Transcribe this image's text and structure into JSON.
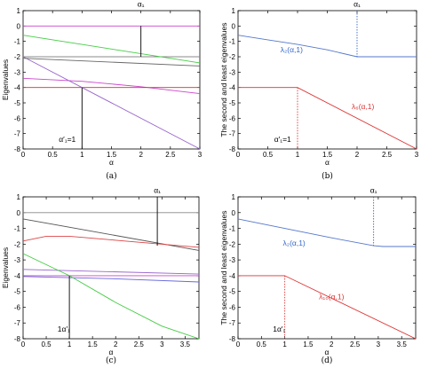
{
  "chart_data": [
    {
      "id": "a",
      "type": "line",
      "caption": "(a)",
      "xlabel": "α",
      "ylabel": "Eigenvalues",
      "xlim": [
        0,
        3
      ],
      "ylim": [
        -8,
        1
      ],
      "xticks": [
        "0",
        "0.5",
        "1",
        "1.5",
        "2",
        "2.5",
        "3"
      ],
      "yticks": [
        "1",
        "0",
        "-1",
        "-2",
        "-3",
        "-4",
        "-5",
        "-6",
        "-7",
        "-8"
      ],
      "series": [
        {
          "color": "#cc44cc",
          "x": [
            0,
            3
          ],
          "y": [
            0,
            0
          ]
        },
        {
          "color": "#888888",
          "x": [
            0,
            3
          ],
          "y": [
            -2,
            -2
          ]
        },
        {
          "color": "#44cc44",
          "x": [
            0,
            3
          ],
          "y": [
            -0.6,
            -2.4
          ]
        },
        {
          "color": "#cc44cc",
          "x": [
            0,
            1,
            2,
            3
          ],
          "y": [
            -3.4,
            -3.6,
            -3.95,
            -4.4
          ]
        },
        {
          "color": "#cc3333",
          "x": [
            0,
            3
          ],
          "y": [
            -4,
            -4
          ]
        },
        {
          "color": "#9966cc",
          "x": [
            0,
            3
          ],
          "y": [
            -2,
            -8
          ]
        },
        {
          "color": "#666666",
          "x": [
            0,
            3
          ],
          "y": [
            -2.1,
            -2.6
          ]
        }
      ],
      "vlines": [
        {
          "x": 2,
          "y_from": 0,
          "y_to": -2,
          "style": "solid",
          "color": "#000000"
        },
        {
          "x": 1,
          "y_from": -4,
          "y_to": -8,
          "style": "solid",
          "color": "#000000"
        }
      ],
      "annotations": [
        {
          "text": "α₁",
          "x": 2,
          "y": 1.25,
          "color": "#000000"
        },
        {
          "text": "α′₁=1",
          "x": 0.75,
          "y": -7.55,
          "color": "#000000"
        }
      ]
    },
    {
      "id": "b",
      "type": "line",
      "caption": "(b)",
      "xlabel": "α",
      "ylabel": "The second and least eigenvalues",
      "xlim": [
        0,
        3
      ],
      "ylim": [
        -8,
        1
      ],
      "xticks": [
        "0",
        "0.5",
        "1",
        "1.5",
        "2",
        "2.5",
        "3"
      ],
      "yticks": [
        "1",
        "0",
        "-1",
        "-2",
        "-3",
        "-4",
        "-5",
        "-6",
        "-7",
        "-8"
      ],
      "series": [
        {
          "name": "λ₂(α,1)",
          "color": "#5577cc",
          "x": [
            0,
            0.5,
            1,
            1.5,
            2,
            3
          ],
          "y": [
            -0.6,
            -0.9,
            -1.2,
            -1.55,
            -2,
            -2
          ]
        },
        {
          "name": "λ₆(α,1)",
          "color": "#dd3333",
          "x": [
            0,
            1,
            3
          ],
          "y": [
            -4,
            -4,
            -8
          ]
        }
      ],
      "vlines": [
        {
          "x": 2,
          "y_from": 1,
          "y_to": -2,
          "style": "dotted",
          "color": "#3366cc"
        },
        {
          "x": 1,
          "y_from": -4,
          "y_to": -8,
          "style": "dotted",
          "color": "#dd3333"
        }
      ],
      "annotations": [
        {
          "text": "α₁",
          "x": 2,
          "y": 1.25,
          "color": "#000000"
        },
        {
          "text": "λ₂(α,1)",
          "x": 0.9,
          "y": -1.7,
          "color": "#3366cc"
        },
        {
          "text": "λ₆(α,1)",
          "x": 2.1,
          "y": -5.4,
          "color": "#dd3333"
        },
        {
          "text": "α′₁=1",
          "x": 0.75,
          "y": -7.55,
          "color": "#000000"
        }
      ]
    },
    {
      "id": "c",
      "type": "line",
      "caption": "(c)",
      "xlabel": "α",
      "ylabel": "Eigenvalues",
      "xlim": [
        0,
        3.8
      ],
      "ylim": [
        -8,
        1
      ],
      "xticks": [
        "0",
        "0.5",
        "1",
        "1.5",
        "2",
        "2.5",
        "3",
        "3.5"
      ],
      "yticks": [
        "1",
        "0",
        "-1",
        "-2",
        "-3",
        "-4",
        "-5",
        "-6",
        "-7",
        "-8"
      ],
      "series": [
        {
          "color": "#888888",
          "x": [
            0,
            3.8
          ],
          "y": [
            0,
            0
          ]
        },
        {
          "color": "#555555",
          "x": [
            0,
            3.8
          ],
          "y": [
            -0.4,
            -2.4
          ]
        },
        {
          "color": "#dd4444",
          "x": [
            0,
            0.5,
            1,
            2,
            3.8
          ],
          "y": [
            -1.8,
            -1.5,
            -1.5,
            -1.75,
            -2.2
          ]
        },
        {
          "color": "#9966cc",
          "x": [
            0,
            3.8
          ],
          "y": [
            -3.6,
            -3.9
          ]
        },
        {
          "color": "#cc44cc",
          "x": [
            0,
            3.8
          ],
          "y": [
            -4,
            -4
          ]
        },
        {
          "color": "#6666dd",
          "x": [
            0,
            2,
            3.8
          ],
          "y": [
            -4.05,
            -4.2,
            -4.4
          ]
        },
        {
          "color": "#44cc44",
          "x": [
            0,
            1,
            2,
            3,
            3.8
          ],
          "y": [
            -2.6,
            -4,
            -5.7,
            -7.2,
            -8
          ]
        }
      ],
      "vlines": [
        {
          "x": 2.9,
          "y_from": 1,
          "y_to": -2.1,
          "style": "solid",
          "color": "#000000"
        },
        {
          "x": 1,
          "y_from": -4,
          "y_to": -8,
          "style": "solid",
          "color": "#000000"
        }
      ],
      "annotations": [
        {
          "text": "α₁",
          "x": 2.9,
          "y": 1.25,
          "color": "#000000"
        },
        {
          "text": "1α′₁",
          "x": 0.88,
          "y": -7.55,
          "color": "#000000"
        }
      ]
    },
    {
      "id": "d",
      "type": "line",
      "caption": "(d)",
      "xlabel": "α",
      "ylabel": "The second and least eigenvalues",
      "xlim": [
        0,
        3.8
      ],
      "ylim": [
        -8,
        1
      ],
      "xticks": [
        "0",
        "0.5",
        "1",
        "1.5",
        "2",
        "2.5",
        "3",
        "3.5"
      ],
      "yticks": [
        "1",
        "0",
        "-1",
        "-2",
        "-3",
        "-4",
        "-5",
        "-6",
        "-7",
        "-8"
      ],
      "series": [
        {
          "name": "λ₂(α,1)",
          "color": "#5577cc",
          "x": [
            0,
            1,
            2,
            2.9,
            3.1,
            3.8
          ],
          "y": [
            -0.4,
            -1.0,
            -1.6,
            -2.1,
            -2.15,
            -2.15
          ]
        },
        {
          "name": "λ₁₀(α,1)",
          "color": "#dd3333",
          "x": [
            0,
            1,
            3.8
          ],
          "y": [
            -4,
            -4,
            -8
          ]
        }
      ],
      "vlines": [
        {
          "x": 2.9,
          "y_from": 1,
          "y_to": -2.1,
          "style": "dotted",
          "color": "#3366cc"
        },
        {
          "x": 1,
          "y_from": -4,
          "y_to": -8,
          "style": "dotted",
          "color": "#dd3333"
        }
      ],
      "annotations": [
        {
          "text": "α₁",
          "x": 2.9,
          "y": 1.25,
          "color": "#000000"
        },
        {
          "text": "λ₂(α,1)",
          "x": 1.2,
          "y": -2.1,
          "color": "#3366cc"
        },
        {
          "text": "λ₁₀(α,1)",
          "x": 2.0,
          "y": -5.5,
          "color": "#dd3333"
        },
        {
          "text": "1α′₁",
          "x": 0.88,
          "y": -7.55,
          "color": "#000000"
        }
      ]
    }
  ]
}
